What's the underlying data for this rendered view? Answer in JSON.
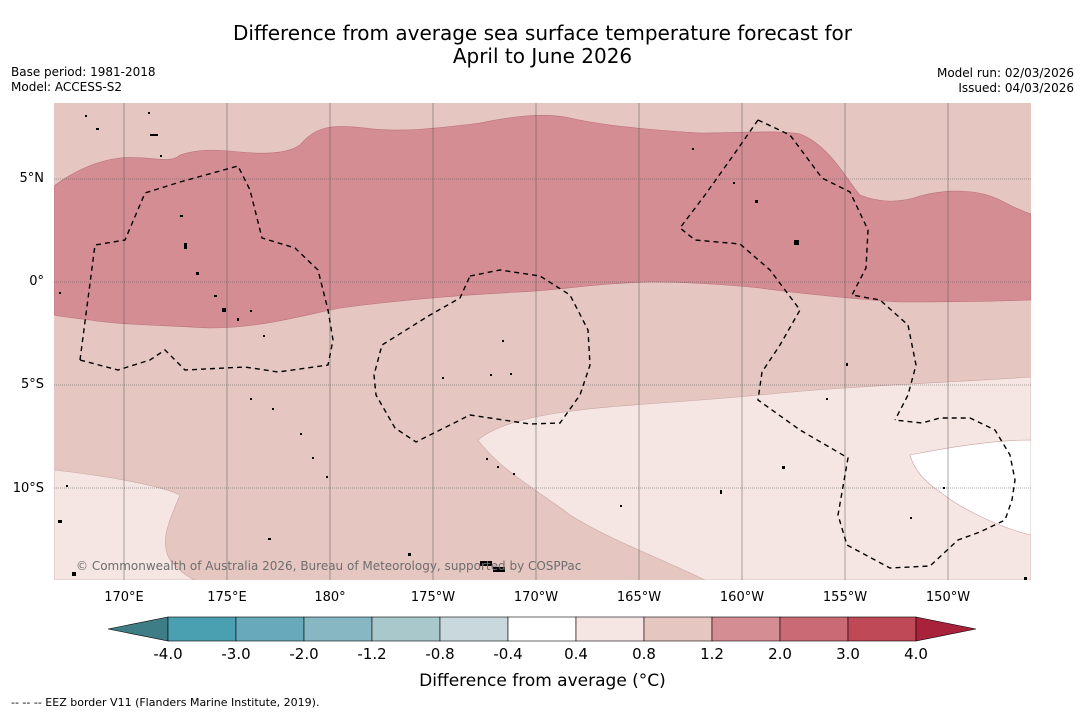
{
  "title": {
    "line1": "Difference from average sea surface temperature forecast for",
    "line2": "April to June 2026"
  },
  "meta_left": {
    "base_period": "Base period: 1981-2018",
    "model": "Model: ACCESS-S2"
  },
  "meta_right": {
    "model_run": "Model run: 02/03/2026",
    "issued": "Issued: 04/03/2026"
  },
  "map": {
    "lat_labels": [
      "5°N",
      "0°",
      "5°S",
      "10°S"
    ],
    "lon_labels": [
      "170°E",
      "175°E",
      "180°",
      "175°W",
      "170°W",
      "165°W",
      "160°W",
      "155°W",
      "150°W"
    ],
    "credit": "© Commonwealth of Australia 2026, Bureau of Meteorology, supported by COSPPac"
  },
  "colorbar": {
    "ticks": [
      "-4.0",
      "-3.0",
      "-2.0",
      "-1.2",
      "-0.8",
      "-0.4",
      "0.4",
      "0.8",
      "1.2",
      "2.0",
      "3.0",
      "4.0"
    ],
    "colors": [
      "#3e7d85",
      "#4a9fb0",
      "#68aabb",
      "#87b7c3",
      "#a8c8cc",
      "#c8d8dc",
      "#ffffff",
      "#f5e6e4",
      "#e6c6c1",
      "#d58d94",
      "#c96a74",
      "#bf4957",
      "#a8223c"
    ],
    "label": "Difference from average (°C)"
  },
  "footnote": "--  --  -- EEZ border V11 (Flanders Marine Institute, 2019)."
}
